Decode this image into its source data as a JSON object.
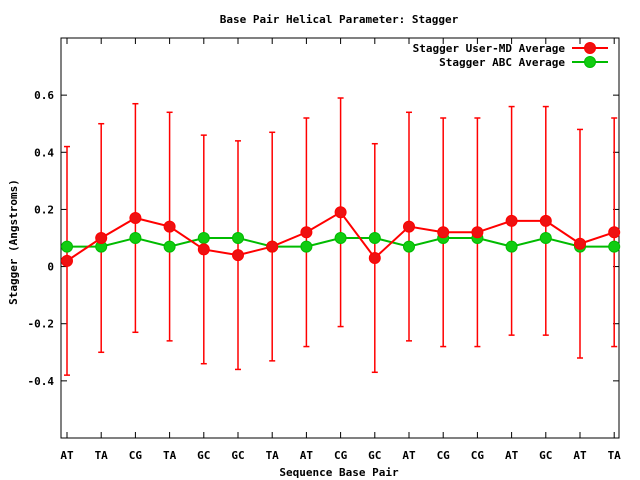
{
  "chart_data": {
    "type": "line",
    "title": "Base Pair Helical Parameter: Stagger",
    "xlabel": "Sequence Base Pair",
    "ylabel": "Stagger (Angstroms)",
    "ylim": [
      -0.6,
      0.8
    ],
    "yticks": [
      -0.4,
      -0.2,
      0,
      0.2,
      0.4,
      0.6
    ],
    "ytick_labels": [
      "-0.4",
      "-0.2",
      "0",
      "0.2",
      "0.4",
      "0.6"
    ],
    "grid": false,
    "legend_position": "top-right",
    "categories": [
      "AT",
      "TA",
      "CG",
      "TA",
      "GC",
      "GC",
      "TA",
      "AT",
      "CG",
      "GC",
      "AT",
      "CG",
      "CG",
      "AT",
      "GC",
      "AT",
      "TA"
    ],
    "series": [
      {
        "name": "Stagger User-MD Average",
        "color": "#ff0000",
        "marker_color": "#ee1111",
        "values": [
          0.02,
          0.1,
          0.17,
          0.14,
          0.06,
          0.04,
          0.07,
          0.12,
          0.19,
          0.03,
          0.14,
          0.12,
          0.12,
          0.16,
          0.16,
          0.08,
          0.12
        ],
        "error_low": [
          -0.38,
          -0.3,
          -0.23,
          -0.26,
          -0.34,
          -0.36,
          -0.33,
          -0.28,
          -0.21,
          -0.37,
          -0.26,
          -0.28,
          -0.28,
          -0.24,
          -0.24,
          -0.32,
          -0.28
        ],
        "error_high": [
          0.42,
          0.5,
          0.57,
          0.54,
          0.46,
          0.44,
          0.47,
          0.52,
          0.59,
          0.43,
          0.54,
          0.52,
          0.52,
          0.56,
          0.56,
          0.48,
          0.52
        ]
      },
      {
        "name": "Stagger ABC Average",
        "color": "#00bb00",
        "marker_color": "#11cc11",
        "values": [
          0.07,
          0.07,
          0.1,
          0.07,
          0.1,
          0.1,
          0.07,
          0.07,
          0.1,
          0.1,
          0.07,
          0.1,
          0.1,
          0.07,
          0.1,
          0.07,
          0.07
        ]
      }
    ]
  }
}
